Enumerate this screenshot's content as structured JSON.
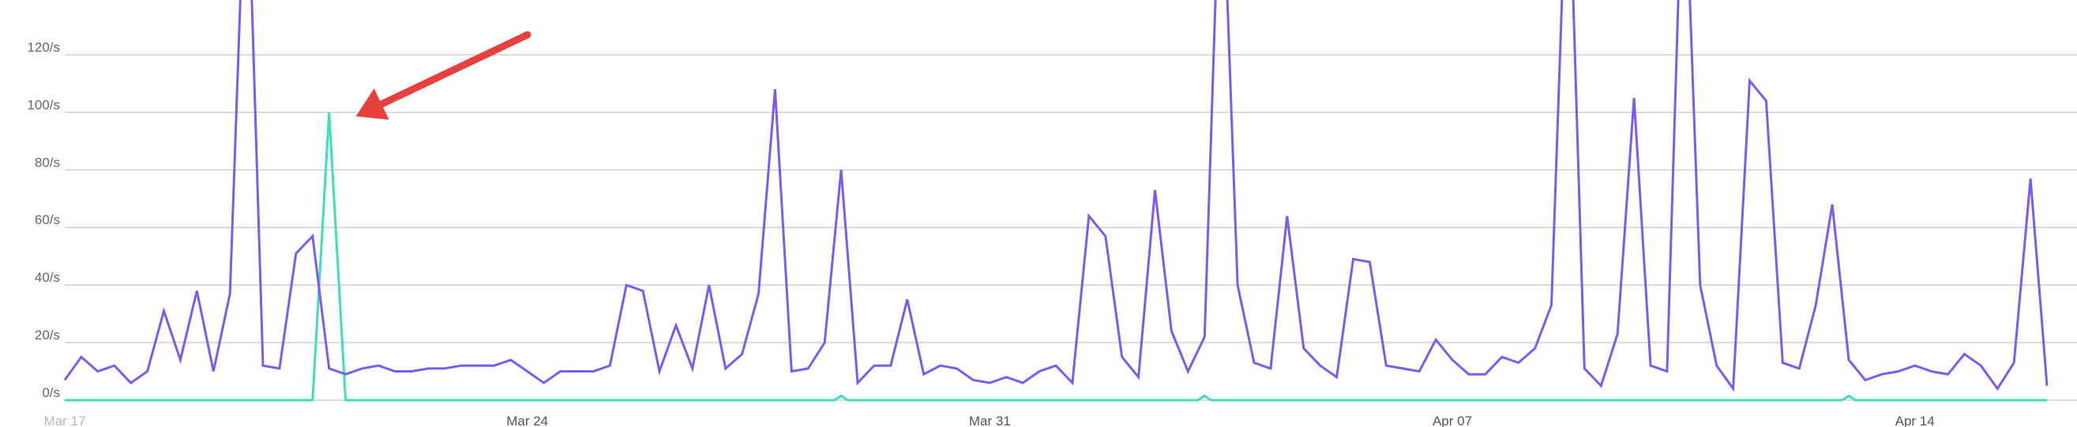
{
  "chart_data": {
    "type": "line",
    "title": "",
    "xlabel": "",
    "ylabel": "",
    "ylim": [
      0,
      140
    ],
    "y_ticks": [
      "0/s",
      "20/s",
      "40/s",
      "60/s",
      "80/s",
      "100/s",
      "120/s"
    ],
    "y_tick_values": [
      0,
      20,
      40,
      60,
      80,
      100,
      120
    ],
    "x_ticks": [
      "Mar 17",
      "Mar 24",
      "Mar 31",
      "Apr 07",
      "Apr 14"
    ],
    "x_tick_values": [
      0,
      28,
      56,
      84,
      112
    ],
    "x_unit": "6-hour intervals from Mar 17",
    "grid": true,
    "legend": "none",
    "annotation": "red arrow pointing to spike",
    "colors": {
      "series_primary": "#7b5bf2",
      "series_secondary": "#3ee0b8",
      "arrow": "#e8403e",
      "grid": "#cfcfcf",
      "tick_text": "#666666"
    },
    "series": [
      {
        "values": [
          7,
          15,
          10,
          12,
          6,
          10,
          31,
          14,
          38,
          10,
          37,
          200,
          12,
          11,
          51,
          57,
          11,
          9,
          11,
          12,
          10,
          10,
          11,
          11,
          12,
          12,
          12,
          14,
          10,
          6,
          10,
          10,
          10,
          12,
          40,
          38,
          10,
          26,
          11,
          40,
          11,
          16,
          37,
          108,
          10,
          11,
          20,
          80,
          6,
          12,
          12,
          35,
          9,
          12,
          11,
          7,
          6,
          8,
          6,
          10,
          12,
          6,
          64,
          57,
          15,
          8,
          73,
          24,
          10,
          22,
          200,
          40,
          13,
          11,
          64,
          18,
          12,
          8,
          49,
          48,
          12,
          11,
          10,
          21,
          14,
          9,
          9,
          15,
          13,
          18,
          33,
          200,
          11,
          5,
          23,
          105,
          12,
          10,
          200,
          40,
          12,
          4,
          111,
          104,
          13,
          11,
          33,
          68,
          14,
          7,
          9,
          10,
          12,
          10,
          9,
          16,
          12,
          4,
          13,
          77,
          5
        ]
      },
      {
        "values": [
          0,
          0,
          0,
          0,
          0,
          0,
          0,
          0,
          0,
          0,
          0,
          0,
          0,
          0,
          0,
          0,
          100,
          0,
          0,
          0,
          0,
          0,
          0,
          0,
          0,
          0,
          0,
          0,
          0,
          0,
          0,
          0,
          0,
          0,
          0,
          0,
          0,
          0,
          0,
          0,
          0,
          0,
          0,
          0,
          0,
          0,
          0,
          0,
          0,
          0,
          0,
          0,
          0,
          0,
          0,
          0,
          0,
          0,
          0,
          0,
          0,
          0,
          0,
          0,
          0,
          0,
          0,
          0,
          0,
          0,
          0,
          0,
          0,
          0,
          0,
          0,
          0,
          0,
          0,
          0,
          0,
          0,
          0,
          0,
          0,
          0,
          0,
          0,
          0,
          0,
          0,
          0,
          0,
          0,
          0,
          0,
          0,
          0,
          0,
          0,
          0,
          0,
          0,
          0,
          0,
          0,
          0,
          0,
          0,
          0,
          0,
          0,
          0,
          0,
          0,
          0,
          0,
          0,
          0,
          0,
          0
        ],
        "bumps": [
          [
            47,
            1.5
          ],
          [
            69,
            1.5
          ],
          [
            108,
            1.5
          ]
        ]
      }
    ]
  }
}
